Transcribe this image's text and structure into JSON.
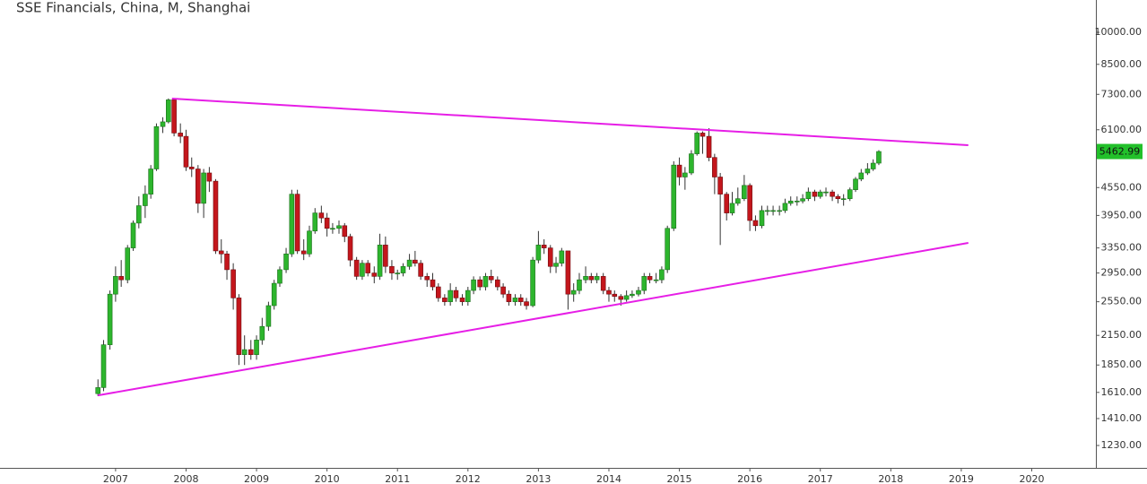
{
  "chart_data": {
    "type": "candlestick",
    "title": "SSE Financials, China, M, Shanghai",
    "log_scale": true,
    "up_color": "#2db52d",
    "down_color": "#c4161c",
    "x": [
      2006.75,
      2006.83,
      2006.92,
      2007.0,
      2007.08,
      2007.17,
      2007.25,
      2007.33,
      2007.42,
      2007.5,
      2007.58,
      2007.67,
      2007.75,
      2007.83,
      2007.92,
      2008.0,
      2008.08,
      2008.17,
      2008.25,
      2008.33,
      2008.42,
      2008.5,
      2008.58,
      2008.67,
      2008.75,
      2008.83,
      2008.92,
      2009.0,
      2009.08,
      2009.17,
      2009.25,
      2009.33,
      2009.42,
      2009.5,
      2009.58,
      2009.67,
      2009.75,
      2009.83,
      2009.92,
      2010.0,
      2010.08,
      2010.17,
      2010.25,
      2010.33,
      2010.42,
      2010.5,
      2010.58,
      2010.67,
      2010.75,
      2010.83,
      2010.92,
      2011.0,
      2011.08,
      2011.17,
      2011.25,
      2011.33,
      2011.42,
      2011.5,
      2011.58,
      2011.67,
      2011.75,
      2011.83,
      2011.92,
      2012.0,
      2012.08,
      2012.17,
      2012.25,
      2012.33,
      2012.42,
      2012.5,
      2012.58,
      2012.67,
      2012.75,
      2012.83,
      2012.92,
      2013.0,
      2013.08,
      2013.17,
      2013.25,
      2013.33,
      2013.42,
      2013.5,
      2013.58,
      2013.67,
      2013.75,
      2013.83,
      2013.92,
      2014.0,
      2014.08,
      2014.17,
      2014.25,
      2014.33,
      2014.42,
      2014.5,
      2014.58,
      2014.67,
      2014.75,
      2014.83,
      2014.92,
      2015.0,
      2015.08,
      2015.17,
      2015.25,
      2015.33,
      2015.42,
      2015.5,
      2015.58,
      2015.67,
      2015.75,
      2015.83,
      2015.92,
      2016.0,
      2016.08,
      2016.17,
      2016.25,
      2016.33,
      2016.42,
      2016.5,
      2016.58,
      2016.67,
      2016.75,
      2016.83,
      2016.92,
      2017.0,
      2017.08,
      2017.17,
      2017.25,
      2017.33,
      2017.42,
      2017.5,
      2017.58,
      2017.67,
      2017.75,
      2017.83
    ],
    "open": [
      1600,
      1650,
      2050,
      2650,
      2900,
      2850,
      3350,
      3800,
      4150,
      4400,
      5000,
      6200,
      6350,
      7100,
      6000,
      5900,
      5050,
      5000,
      4200,
      4900,
      4700,
      3300,
      3250,
      3000,
      2600,
      1950,
      2000,
      1950,
      2100,
      2250,
      2500,
      2800,
      3000,
      3250,
      4400,
      3300,
      3250,
      3650,
      4000,
      3900,
      3700,
      3700,
      3750,
      3550,
      3150,
      2900,
      3100,
      2950,
      2900,
      3400,
      3050,
      2950,
      2950,
      3050,
      3150,
      3100,
      2900,
      2850,
      2750,
      2600,
      2550,
      2700,
      2600,
      2550,
      2700,
      2850,
      2750,
      2900,
      2850,
      2750,
      2650,
      2550,
      2600,
      2550,
      2500,
      3150,
      3400,
      3350,
      3050,
      3100,
      3300,
      2650,
      2700,
      2850,
      2900,
      2850,
      2900,
      2700,
      2650,
      2620,
      2580,
      2630,
      2650,
      2700,
      2900,
      2850,
      2850,
      3000,
      3700,
      5100,
      4800,
      4900,
      5400,
      6000,
      5900,
      5300,
      4800,
      4400,
      4000,
      4200,
      4300,
      4600,
      3850,
      3750,
      4050,
      4050,
      4050,
      4050,
      4200,
      4250,
      4250,
      4300,
      4450,
      4350,
      4450,
      4450,
      4350,
      4300,
      4300,
      4500,
      4750,
      4900,
      5000,
      5150
    ],
    "high": [
      1720,
      2100,
      2700,
      3050,
      3150,
      3400,
      3850,
      4350,
      4600,
      5100,
      6300,
      6500,
      7150,
      7150,
      6300,
      6100,
      5300,
      5100,
      5000,
      5050,
      4750,
      3500,
      3300,
      3100,
      2650,
      2150,
      2100,
      2150,
      2350,
      2550,
      2850,
      3050,
      3350,
      4500,
      4500,
      3500,
      3750,
      4100,
      4150,
      4000,
      3800,
      3850,
      3800,
      3600,
      3200,
      3150,
      3150,
      3050,
      3600,
      3550,
      3150,
      3000,
      3100,
      3250,
      3300,
      3150,
      2950,
      2950,
      2800,
      2650,
      2800,
      2750,
      2650,
      2750,
      2900,
      2900,
      2950,
      3000,
      2900,
      2800,
      2700,
      2650,
      2650,
      2600,
      3200,
      3650,
      3500,
      3400,
      3200,
      3350,
      3300,
      2800,
      2950,
      3050,
      2950,
      2950,
      2950,
      2750,
      2700,
      2650,
      2700,
      2700,
      2750,
      2950,
      2950,
      2950,
      3050,
      3750,
      5200,
      5300,
      5050,
      5500,
      6050,
      6050,
      6150,
      5400,
      4900,
      4450,
      4450,
      4550,
      4850,
      4650,
      3950,
      4150,
      4150,
      4150,
      4150,
      4300,
      4350,
      4350,
      4400,
      4550,
      4500,
      4500,
      4550,
      4500,
      4400,
      4400,
      4550,
      4800,
      5000,
      5150,
      5250,
      5500
    ],
    "low": [
      1580,
      1620,
      2000,
      2550,
      2750,
      2800,
      3300,
      3700,
      3900,
      4300,
      4950,
      6000,
      6300,
      5900,
      5700,
      4950,
      4800,
      4000,
      3900,
      4450,
      3250,
      3100,
      2850,
      2450,
      1850,
      1850,
      1900,
      1900,
      2050,
      2200,
      2450,
      2750,
      2950,
      3200,
      3250,
      3150,
      3200,
      3600,
      3800,
      3550,
      3600,
      3600,
      3450,
      3050,
      2850,
      2850,
      2900,
      2800,
      2850,
      2950,
      2850,
      2850,
      2900,
      3000,
      3050,
      2850,
      2750,
      2700,
      2550,
      2500,
      2500,
      2550,
      2500,
      2500,
      2650,
      2700,
      2700,
      2800,
      2700,
      2600,
      2500,
      2500,
      2500,
      2450,
      2480,
      3100,
      3250,
      2950,
      2950,
      3050,
      2450,
      2550,
      2650,
      2800,
      2800,
      2800,
      2650,
      2550,
      2550,
      2500,
      2550,
      2600,
      2620,
      2650,
      2800,
      2800,
      2800,
      2950,
      3650,
      4600,
      4500,
      4850,
      5350,
      5400,
      5200,
      4400,
      3400,
      3850,
      3950,
      4150,
      4250,
      3650,
      3650,
      3700,
      3950,
      3950,
      3950,
      4000,
      4150,
      4150,
      4200,
      4250,
      4250,
      4300,
      4350,
      4250,
      4200,
      4150,
      4250,
      4450,
      4700,
      4850,
      4950,
      5100
    ],
    "close": [
      1650,
      2050,
      2650,
      2900,
      2850,
      3350,
      3800,
      4150,
      4400,
      5000,
      6200,
      6350,
      7100,
      6000,
      5900,
      5050,
      5000,
      4200,
      4900,
      4700,
      3300,
      3250,
      3000,
      2600,
      1950,
      2000,
      1950,
      2100,
      2250,
      2500,
      2800,
      3000,
      3250,
      4400,
      3300,
      3250,
      3650,
      4000,
      3900,
      3700,
      3700,
      3750,
      3550,
      3150,
      2900,
      3100,
      2950,
      2900,
      3400,
      3050,
      2950,
      2950,
      3050,
      3150,
      3100,
      2900,
      2850,
      2750,
      2600,
      2550,
      2700,
      2600,
      2550,
      2700,
      2850,
      2750,
      2900,
      2850,
      2750,
      2650,
      2550,
      2600,
      2550,
      2500,
      3150,
      3400,
      3350,
      3050,
      3100,
      3300,
      2650,
      2700,
      2850,
      2900,
      2850,
      2900,
      2700,
      2650,
      2620,
      2580,
      2630,
      2650,
      2700,
      2900,
      2850,
      2850,
      3000,
      3700,
      5100,
      4800,
      4900,
      5400,
      6000,
      5900,
      5300,
      4800,
      4400,
      4000,
      4200,
      4300,
      4600,
      3850,
      3750,
      4050,
      4050,
      4050,
      4050,
      4200,
      4250,
      4250,
      4300,
      4450,
      4350,
      4450,
      4450,
      4350,
      4300,
      4300,
      4500,
      4750,
      4900,
      5000,
      5150,
      5462.99
    ],
    "trendlines": [
      {
        "color": "#e61ee6",
        "x": [
          2007.8,
          2019.1
        ],
        "y": [
          7145,
          5640
        ]
      },
      {
        "color": "#e61ee6",
        "x": [
          2006.75,
          2019.1
        ],
        "y": [
          1586,
          3436
        ]
      }
    ],
    "xlim": [
      2005.36,
      2020.91
    ],
    "xticks": [
      2007,
      2008,
      2009,
      2010,
      2011,
      2012,
      2013,
      2014,
      2015,
      2016,
      2017,
      2018,
      2019,
      2020
    ],
    "ylim": [
      1098,
      11780
    ],
    "yticks": [
      {
        "value": 1230,
        "label": "1230.00"
      },
      {
        "value": 1410,
        "label": "1410.00"
      },
      {
        "value": 1610,
        "label": "1610.00"
      },
      {
        "value": 1850,
        "label": "1850.00"
      },
      {
        "value": 2150,
        "label": "2150.00"
      },
      {
        "value": 2550,
        "label": "2550.00"
      },
      {
        "value": 2950,
        "label": "2950.00"
      },
      {
        "value": 3350,
        "label": "3350.00"
      },
      {
        "value": 3950,
        "label": "3950.00"
      },
      {
        "value": 4550,
        "label": "4550.00"
      },
      {
        "value": 6100,
        "label": "6100.00"
      },
      {
        "value": 7300,
        "label": "7300.00"
      },
      {
        "value": 8500,
        "label": "8500.00"
      },
      {
        "value": 10000,
        "label": "10000.00"
      }
    ],
    "last_price_color": "#22c02a"
  }
}
